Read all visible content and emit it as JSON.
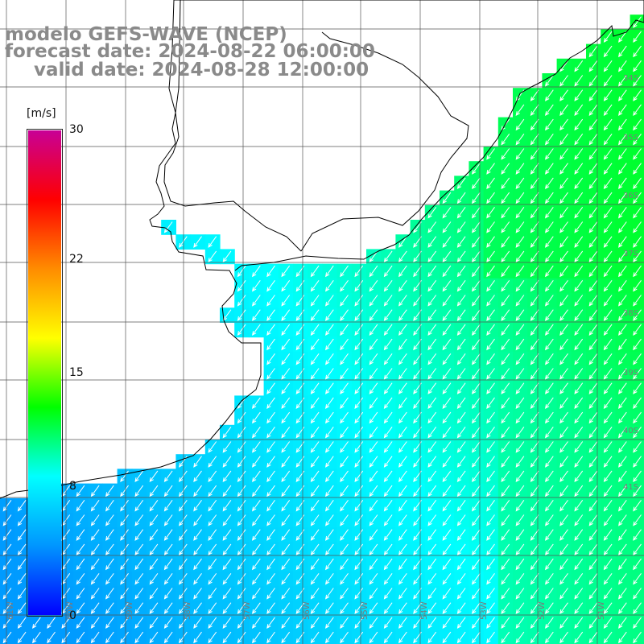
{
  "title": {
    "line1": "modelo GEFS-WAVE (NCEP)",
    "line2": "forecast date: 2024-08-22 06:00:00",
    "line3": "valid date: 2024-08-28 12:00:00"
  },
  "colorbar": {
    "unit": "[m/s]",
    "ticks": [
      {
        "value": "30",
        "frac": 1.0
      },
      {
        "value": "22",
        "frac": 0.7333
      },
      {
        "value": "15",
        "frac": 0.5
      },
      {
        "value": "8",
        "frac": 0.2667
      },
      {
        "value": "0",
        "frac": 0.0
      }
    ],
    "colors": [
      "#0000ff",
      "#0096ff",
      "#00ffff",
      "#00ff00",
      "#ffff00",
      "#ff8c00",
      "#ff0000",
      "#c80096"
    ]
  },
  "map": {
    "land_color": "#ffffff",
    "grid_color": "#555555",
    "coast_color": "#000000",
    "arrow_color": "#ffffff",
    "lat_labels": [
      "34S",
      "35S",
      "36S",
      "37S",
      "38S",
      "39S",
      "40S",
      "41S"
    ],
    "lon_labels": [
      "61W",
      "60W",
      "59W",
      "58W",
      "57W",
      "56W",
      "55W",
      "54W",
      "53W",
      "52W",
      "51W"
    ]
  }
}
